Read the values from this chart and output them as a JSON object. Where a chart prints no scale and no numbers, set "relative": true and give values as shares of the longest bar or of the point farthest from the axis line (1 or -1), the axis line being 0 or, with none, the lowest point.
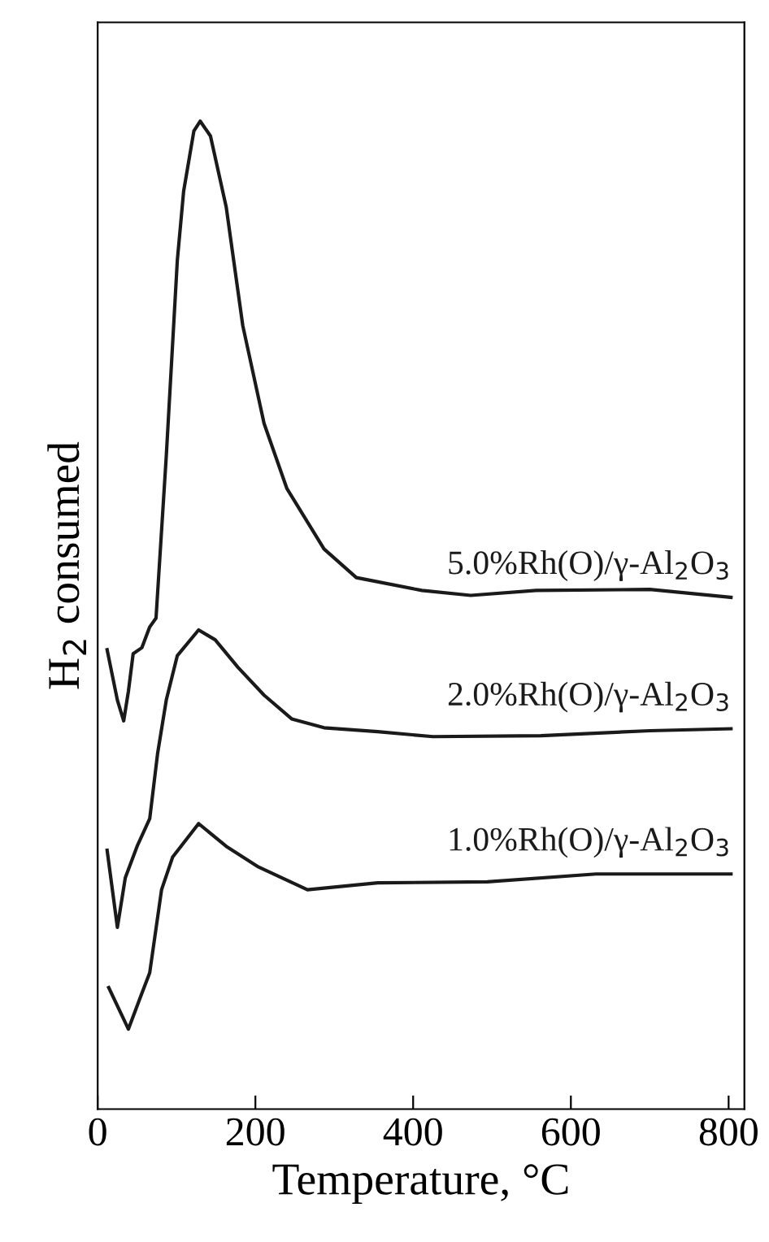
{
  "chart_data": {
    "type": "line",
    "xlabel": "Temperature, °C",
    "ylabel": "H$_{2}$ consumed",
    "relative": true,
    "xlim": [
      0,
      820
    ],
    "xticks": [
      0,
      200,
      400,
      600,
      800
    ],
    "tick_labels": "x",
    "grid": false,
    "legend": false,
    "series": [
      {
        "name": "5.0%Rh(O)/γ-Al$_{2}$O$_{3}$",
        "color": "#1a1a1a",
        "x": [
          12,
          25,
          33,
          39,
          45,
          56,
          66,
          74,
          87,
          101,
          109,
          122,
          130,
          143,
          163,
          184,
          211,
          240,
          287,
          328,
          411,
          473,
          556,
          700,
          803
        ],
        "values": [
          0.465,
          0.414,
          0.393,
          0.423,
          0.461,
          0.467,
          0.488,
          0.497,
          0.661,
          0.859,
          0.929,
          0.99,
          1.0,
          0.985,
          0.913,
          0.793,
          0.694,
          0.628,
          0.567,
          0.538,
          0.525,
          0.52,
          0.525,
          0.526,
          0.518
        ]
      },
      {
        "name": "2.0%Rh(O)/γ-Al$_{2}$O$_{3}$",
        "color": "#1a1a1a",
        "x": [
          12,
          25,
          35,
          50,
          66,
          76,
          87,
          101,
          128,
          149,
          178,
          211,
          246,
          287,
          355,
          425,
          562,
          700,
          803
        ],
        "values": [
          0.262,
          0.184,
          0.234,
          0.266,
          0.294,
          0.36,
          0.414,
          0.459,
          0.485,
          0.475,
          0.447,
          0.419,
          0.395,
          0.386,
          0.382,
          0.377,
          0.378,
          0.383,
          0.385
        ]
      },
      {
        "name": "1.0%Rh(O)/γ-Al$_{2}$O$_{3}$",
        "color": "#1a1a1a",
        "x": [
          14,
          39,
          54,
          66,
          81,
          95,
          128,
          163,
          204,
          266,
          355,
          494,
          632,
          803
        ],
        "values": [
          0.123,
          0.081,
          0.113,
          0.138,
          0.222,
          0.255,
          0.289,
          0.266,
          0.245,
          0.222,
          0.229,
          0.23,
          0.238,
          0.238
        ]
      }
    ]
  }
}
